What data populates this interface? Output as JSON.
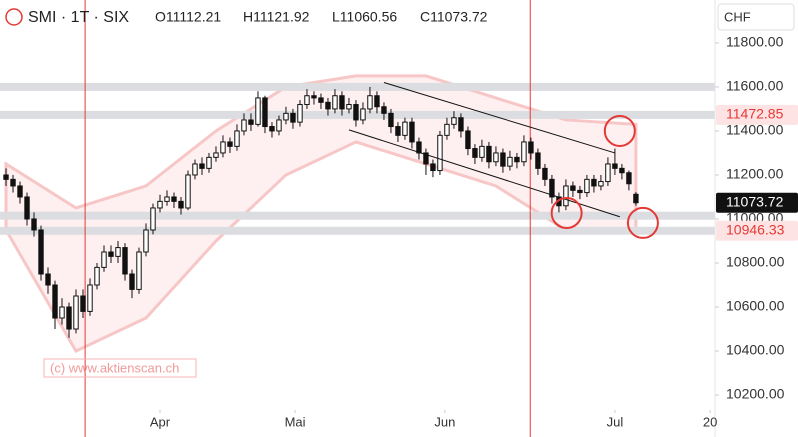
{
  "header": {
    "symbol": "SMI · 1T · SIX",
    "ohlc": [
      {
        "value": 11112.21,
        "label": "O11112.21"
      },
      {
        "value": 11121.92,
        "label": "H11121.92"
      },
      {
        "value": 11060.56,
        "label": "L11060.56"
      },
      {
        "value": 11073.72,
        "label": "C11073.72"
      }
    ],
    "currency": "CHF"
  },
  "watermark": "(c) www.aktienscan.ch",
  "chart_data": {
    "type": "candlestick",
    "open": [
      11200,
      11180,
      11150,
      11100,
      11000,
      10950,
      10750,
      10700,
      10550,
      10600,
      10500,
      10650,
      10580,
      10700,
      10780,
      10850,
      10830,
      10870,
      10750,
      10680,
      10850,
      10950,
      11050,
      11080,
      11100,
      11080,
      11050,
      11200,
      11250,
      11230,
      11280,
      11300,
      11350,
      11330,
      11400,
      11450,
      11430,
      11550,
      11420,
      11400,
      11450,
      11480,
      11440,
      11520,
      11560,
      11550,
      11530,
      11500,
      11560,
      11500,
      11520,
      11450,
      11500,
      11560,
      11510,
      11480,
      11420,
      11380,
      11440,
      11350,
      11300,
      11250,
      11220,
      11380,
      11430,
      11460,
      11400,
      11320,
      11280,
      11330,
      11260,
      11300,
      11240,
      11280,
      11260,
      11350,
      11300,
      11230,
      11180,
      11100,
      11060,
      11150,
      11130,
      11120,
      11180,
      11150,
      11170,
      11250,
      11230,
      11210,
      11112.21
    ],
    "high": [
      11230,
      11200,
      11170,
      11120,
      11030,
      10970,
      10780,
      10720,
      10640,
      10620,
      10680,
      10680,
      10730,
      10800,
      10880,
      10880,
      10900,
      10890,
      10770,
      10870,
      10980,
      11070,
      11110,
      11130,
      11120,
      11100,
      11220,
      11270,
      11280,
      11300,
      11330,
      11380,
      11370,
      11430,
      11480,
      11480,
      11580,
      11560,
      11440,
      11470,
      11510,
      11500,
      11540,
      11590,
      11580,
      11570,
      11550,
      11590,
      11580,
      11550,
      11540,
      11530,
      11600,
      11580,
      11530,
      11500,
      11440,
      11460,
      11460,
      11370,
      11320,
      11270,
      11400,
      11460,
      11490,
      11480,
      11420,
      11340,
      11360,
      11350,
      11330,
      11320,
      11310,
      11300,
      11380,
      11370,
      11320,
      11250,
      11200,
      11120,
      11180,
      11170,
      11150,
      11200,
      11200,
      11200,
      11280,
      11320,
      11250,
      11220,
      11121.92
    ],
    "low": [
      11150,
      11120,
      11070,
      10970,
      10920,
      10720,
      10660,
      10500,
      10520,
      10460,
      10480,
      10550,
      10560,
      10680,
      10760,
      10800,
      10800,
      10720,
      10640,
      10660,
      10830,
      10930,
      11030,
      11060,
      11050,
      11020,
      11040,
      11180,
      11200,
      11210,
      11260,
      11280,
      11300,
      11310,
      11380,
      11400,
      11420,
      11390,
      11370,
      11380,
      11430,
      11410,
      11420,
      11500,
      11520,
      11500,
      11470,
      11480,
      11470,
      11480,
      11420,
      11430,
      11480,
      11480,
      11450,
      11390,
      11350,
      11360,
      11320,
      11270,
      11200,
      11190,
      11200,
      11360,
      11410,
      11370,
      11290,
      11250,
      11260,
      11230,
      11240,
      11210,
      11220,
      11230,
      11240,
      11270,
      11200,
      11150,
      11070,
      11030,
      11040,
      11100,
      11090,
      11100,
      11120,
      11130,
      11150,
      11200,
      11180,
      11130,
      11060.56
    ],
    "close": [
      11180,
      11150,
      11100,
      11000,
      10950,
      10750,
      10700,
      10550,
      10600,
      10500,
      10650,
      10580,
      10700,
      10780,
      10850,
      10830,
      10870,
      10750,
      10680,
      10850,
      10950,
      11050,
      11080,
      11100,
      11080,
      11050,
      11200,
      11250,
      11230,
      11280,
      11300,
      11350,
      11330,
      11400,
      11450,
      11430,
      11550,
      11420,
      11400,
      11450,
      11480,
      11440,
      11520,
      11560,
      11550,
      11530,
      11500,
      11560,
      11500,
      11520,
      11450,
      11500,
      11560,
      11510,
      11480,
      11420,
      11380,
      11440,
      11350,
      11300,
      11250,
      11220,
      11380,
      11430,
      11460,
      11400,
      11320,
      11280,
      11330,
      11260,
      11300,
      11240,
      11280,
      11260,
      11350,
      11300,
      11230,
      11180,
      11100,
      11060,
      11150,
      11130,
      11120,
      11180,
      11150,
      11170,
      11250,
      11230,
      11210,
      11160,
      11073.72
    ],
    "up_color": "#ffffff",
    "down_color": "#111111",
    "xlim": [
      -0.86,
      101.3
    ],
    "xticks": [
      {
        "value": 22,
        "label": "Apr"
      },
      {
        "value": 41.3,
        "label": "Mai"
      },
      {
        "value": 62.7,
        "label": "Jun"
      },
      {
        "value": 87,
        "label": "Jul"
      },
      {
        "value": 100.6,
        "label": "20"
      }
    ],
    "ylim": [
      10132,
      11995
    ],
    "yticks": [
      {
        "value": 11800,
        "label": "11800.00"
      },
      {
        "value": 11600,
        "label": "11600.00"
      },
      {
        "value": 11400,
        "label": "11400.00"
      },
      {
        "value": 11200,
        "label": "11200.00"
      },
      {
        "value": 11000,
        "label": "11000.00"
      },
      {
        "value": 10800,
        "label": "10800.00"
      },
      {
        "value": 10600,
        "label": "10600.00"
      },
      {
        "value": 10400,
        "label": "10400.00"
      },
      {
        "value": 10200,
        "label": "10200.00"
      }
    ],
    "levels": [
      {
        "value": 11472.85,
        "label": "11472.85",
        "color": "#e53935",
        "band": true
      },
      {
        "value": 11073.72,
        "label": "11073.72",
        "color": "#111111",
        "band": false
      },
      {
        "value": 10946.33,
        "label": "10946.33",
        "color": "#e53935",
        "band": true
      }
    ],
    "zones": [
      11600,
      11015
    ],
    "vlines": [
      11.3,
      74.9
    ],
    "trendlines": [
      {
        "x": [
          54,
          87
        ],
        "y": [
          11620,
          11300
        ]
      },
      {
        "x": [
          49,
          87.7
        ],
        "y": [
          11405,
          11010
        ]
      }
    ],
    "circles": [
      {
        "x": 87.7,
        "y": 11400
      },
      {
        "x": 80.1,
        "y": 11027
      },
      {
        "x": 91,
        "y": 10982
      }
    ],
    "envelope": {
      "x": [
        0,
        10,
        20,
        30,
        40,
        50,
        60,
        70,
        80,
        90
      ],
      "upper": [
        11250,
        11050,
        11150,
        11400,
        11600,
        11650,
        11650,
        11550,
        11450,
        11430
      ],
      "lower": [
        10950,
        10400,
        10550,
        10900,
        11200,
        11350,
        11250,
        11150,
        10950,
        10950
      ]
    }
  }
}
